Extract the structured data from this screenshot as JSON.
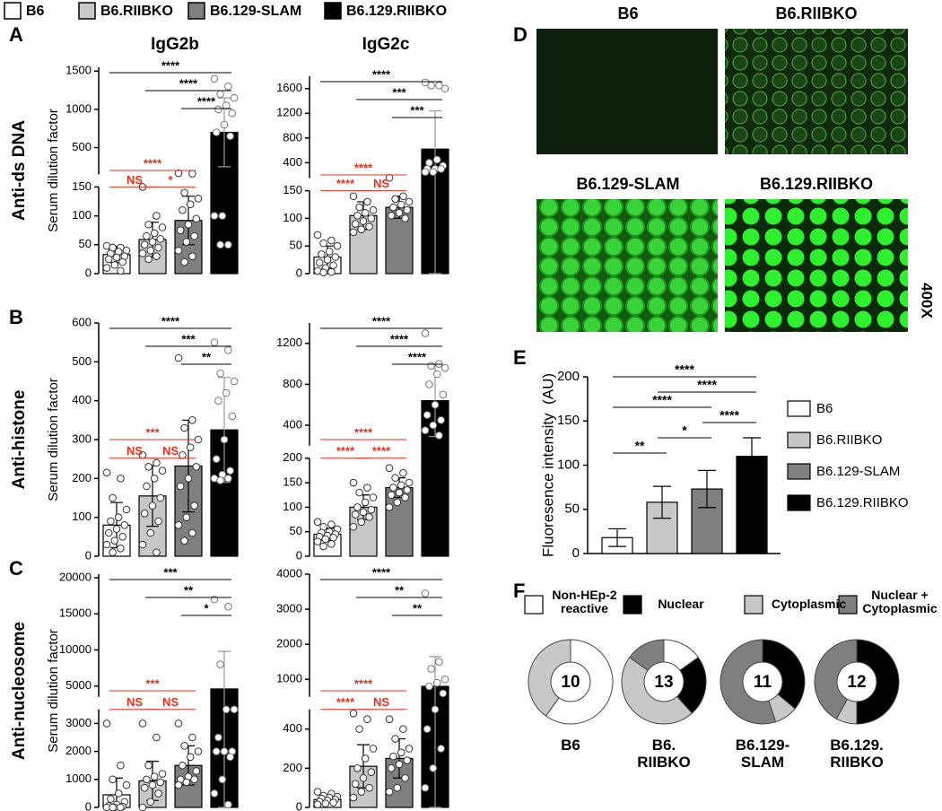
{
  "legend": {
    "groups": [
      {
        "name": "B6",
        "color": "#ffffff"
      },
      {
        "name": "B6.RIIBKO",
        "color": "#c8c8c8"
      },
      {
        "name": "B6.129-SLAM",
        "color": "#7f7f7f"
      },
      {
        "name": "B6.129.RIIBKO",
        "color": "#000000"
      }
    ]
  },
  "panel_labels": [
    "A",
    "B",
    "C",
    "D",
    "E",
    "F"
  ],
  "column_titles": [
    "IgG2b",
    "IgG2c"
  ],
  "row_labels": [
    "Anti-ds DNA",
    "Anti-histone",
    "Anti-nucleosome"
  ],
  "micrographs": {
    "labels": [
      "B6",
      "B6.RIIBKO",
      "B6.129-SLAM",
      "B6.129.RIIBKO"
    ],
    "magnification": "400X"
  },
  "chart_data": [
    {
      "type": "dotbar",
      "ylabel": "Serum dilution factor",
      "segments": [
        {
          "ylim": [
            0,
            150
          ],
          "yticks": [
            0,
            50,
            100,
            150
          ]
        },
        {
          "ylim": [
            150,
            1550
          ],
          "yticks": [
            500,
            1000,
            1500
          ]
        }
      ],
      "means": [
        33,
        59,
        92,
        700
      ],
      "sds": [
        14,
        30,
        42,
        450
      ],
      "points": [
        [
          48,
          45,
          42,
          40,
          38,
          35,
          30,
          28,
          25,
          20,
          15,
          10,
          5,
          45
        ],
        [
          150,
          100,
          85,
          80,
          70,
          65,
          60,
          55,
          50,
          45,
          40,
          35,
          30,
          25
        ],
        [
          165,
          160,
          140,
          130,
          120,
          110,
          95,
          85,
          75,
          65,
          55,
          40,
          30,
          20
        ],
        [
          1400,
          1300,
          1200,
          1150,
          1050,
          1000,
          950,
          800,
          700,
          650,
          100,
          100,
          50,
          50
        ]
      ],
      "comparisons": [
        {
          "groups": [
            0,
            3
          ],
          "label": "****",
          "color": "#000000"
        },
        {
          "groups": [
            1,
            3
          ],
          "label": "****",
          "color": "#000000"
        },
        {
          "groups": [
            2,
            3
          ],
          "label": "****",
          "color": "#000000"
        },
        {
          "groups": [
            0,
            2
          ],
          "label": "****",
          "color": "#e8301c"
        },
        {
          "groups": [
            0,
            1
          ],
          "label": "NS",
          "color": "#e8301c"
        },
        {
          "groups": [
            1,
            2
          ],
          "label": "*",
          "color": "#e8301c"
        }
      ]
    },
    {
      "type": "dotbar",
      "segments": [
        {
          "ylim": [
            0,
            150
          ],
          "yticks": [
            0,
            50,
            100,
            150
          ]
        },
        {
          "ylim": [
            150,
            1800
          ],
          "yticks": [
            400,
            800,
            1200,
            1600
          ]
        }
      ],
      "means": [
        30,
        105,
        120,
        620
      ],
      "sds": [
        20,
        25,
        20,
        620
      ],
      "points": [
        [
          70,
          60,
          55,
          50,
          40,
          35,
          30,
          25,
          20,
          15,
          10,
          5,
          3,
          2
        ],
        [
          140,
          130,
          120,
          115,
          110,
          105,
          100,
          95,
          90,
          85,
          80,
          75
        ],
        [
          155,
          140,
          135,
          130,
          125,
          120,
          115,
          110,
          105,
          100
        ],
        [
          1700,
          1650,
          1650,
          1600,
          450,
          400,
          350,
          300,
          300,
          300,
          250,
          250
        ]
      ],
      "comparisons": [
        {
          "groups": [
            0,
            3
          ],
          "label": "****",
          "color": "#000000"
        },
        {
          "groups": [
            1,
            3
          ],
          "label": "***",
          "color": "#000000"
        },
        {
          "groups": [
            2,
            3
          ],
          "label": "***",
          "color": "#000000"
        },
        {
          "groups": [
            0,
            2
          ],
          "label": "****",
          "color": "#e8301c"
        },
        {
          "groups": [
            0,
            1
          ],
          "label": "****",
          "color": "#e8301c"
        },
        {
          "groups": [
            1,
            2
          ],
          "label": "NS",
          "color": "#e8301c"
        }
      ]
    },
    {
      "type": "dotbar",
      "ylabel": "Serum dilution factor",
      "segments": [
        {
          "ylim": [
            0,
            600
          ],
          "yticks": [
            0,
            100,
            200,
            300,
            400,
            500,
            600
          ]
        }
      ],
      "means": [
        80,
        155,
        232,
        325
      ],
      "sds": [
        58,
        78,
        118,
        135
      ],
      "points": [
        [
          215,
          200,
          150,
          120,
          100,
          90,
          80,
          70,
          60,
          50,
          40,
          30,
          20,
          10
        ],
        [
          260,
          240,
          230,
          220,
          200,
          180,
          150,
          130,
          110,
          90,
          60,
          30,
          10
        ],
        [
          510,
          350,
          330,
          300,
          280,
          260,
          230,
          200,
          180,
          130,
          100,
          80,
          60,
          40
        ],
        [
          550,
          530,
          470,
          450,
          420,
          400,
          360,
          300,
          250,
          220,
          210,
          200,
          200,
          195
        ]
      ],
      "comparisons": [
        {
          "groups": [
            0,
            3
          ],
          "label": "****",
          "color": "#000000"
        },
        {
          "groups": [
            1,
            3
          ],
          "label": "***",
          "color": "#000000"
        },
        {
          "groups": [
            2,
            3
          ],
          "label": "**",
          "color": "#000000"
        },
        {
          "groups": [
            0,
            2
          ],
          "label": "***",
          "color": "#e8301c"
        },
        {
          "groups": [
            0,
            1
          ],
          "label": "NS",
          "color": "#e8301c"
        },
        {
          "groups": [
            1,
            2
          ],
          "label": "NS",
          "color": "#e8301c"
        }
      ]
    },
    {
      "type": "dotbar",
      "segments": [
        {
          "ylim": [
            0,
            200
          ],
          "yticks": [
            0,
            50,
            100,
            150,
            200
          ]
        },
        {
          "ylim": [
            200,
            1400
          ],
          "yticks": [
            400,
            800,
            1200
          ]
        }
      ],
      "means": [
        45,
        100,
        140,
        640
      ],
      "sds": [
        12,
        25,
        20,
        350
      ],
      "points": [
        [
          70,
          65,
          60,
          55,
          50,
          48,
          45,
          42,
          40,
          38,
          35,
          30,
          25,
          20
        ],
        [
          150,
          140,
          130,
          120,
          110,
          100,
          95,
          90,
          85,
          80,
          70,
          60
        ],
        [
          180,
          170,
          160,
          150,
          145,
          140,
          135,
          130,
          125,
          120,
          110,
          100
        ],
        [
          1300,
          1000,
          980,
          960,
          900,
          800,
          700,
          600,
          500,
          450,
          400,
          350,
          300
        ]
      ],
      "comparisons": [
        {
          "groups": [
            0,
            3
          ],
          "label": "****",
          "color": "#000000"
        },
        {
          "groups": [
            1,
            3
          ],
          "label": "****",
          "color": "#000000"
        },
        {
          "groups": [
            2,
            3
          ],
          "label": "****",
          "color": "#000000"
        },
        {
          "groups": [
            0,
            2
          ],
          "label": "****",
          "color": "#e8301c"
        },
        {
          "groups": [
            0,
            1
          ],
          "label": "****",
          "color": "#e8301c"
        },
        {
          "groups": [
            1,
            2
          ],
          "label": "****",
          "color": "#e8301c"
        }
      ]
    },
    {
      "type": "dotbar",
      "ylabel": "Serum dilution factor",
      "segments": [
        {
          "ylim": [
            0,
            3500
          ],
          "yticks": [
            0,
            1000,
            2000,
            3000
          ]
        },
        {
          "ylim": [
            3500,
            20500
          ],
          "yticks": [
            5000,
            10000,
            15000,
            20000
          ]
        }
      ],
      "means": [
        450,
        950,
        1500,
        4600
      ],
      "sds": [
        600,
        700,
        700,
        5200
      ],
      "points": [
        [
          3000,
          1500,
          1000,
          800,
          500,
          300,
          200,
          100,
          50,
          30,
          0,
          0,
          0,
          0
        ],
        [
          3000,
          2500,
          1500,
          1200,
          1100,
          1000,
          900,
          800,
          700,
          500,
          200,
          0
        ],
        [
          3000,
          2500,
          2200,
          2000,
          1800,
          1500,
          1300,
          1100,
          1000,
          1000,
          900,
          800
        ],
        [
          17000,
          16000,
          8000,
          3500,
          3500,
          2500,
          2000,
          2000,
          2000,
          1800,
          1000,
          500,
          100
        ]
      ],
      "comparisons": [
        {
          "groups": [
            0,
            3
          ],
          "label": "***",
          "color": "#000000"
        },
        {
          "groups": [
            1,
            3
          ],
          "label": "**",
          "color": "#000000"
        },
        {
          "groups": [
            2,
            3
          ],
          "label": "*",
          "color": "#000000"
        },
        {
          "groups": [
            0,
            2
          ],
          "label": "***",
          "color": "#e8301c"
        },
        {
          "groups": [
            0,
            1
          ],
          "label": "NS",
          "color": "#e8301c"
        },
        {
          "groups": [
            1,
            2
          ],
          "label": "NS",
          "color": "#e8301c"
        }
      ]
    },
    {
      "type": "dotbar",
      "segments": [
        {
          "ylim": [
            0,
            500
          ],
          "yticks": [
            0,
            200,
            400
          ]
        },
        {
          "ylim": [
            500,
            4000
          ],
          "yticks": [
            1000,
            2000,
            3000,
            4000
          ]
        }
      ],
      "means": [
        40,
        210,
        250,
        800
      ],
      "sds": [
        15,
        110,
        100,
        850
      ],
      "points": [
        [
          80,
          70,
          60,
          55,
          50,
          45,
          40,
          35,
          30,
          25,
          20,
          15
        ],
        [
          480,
          450,
          400,
          300,
          250,
          200,
          180,
          150,
          120,
          100,
          80,
          50
        ],
        [
          450,
          400,
          350,
          300,
          280,
          260,
          240,
          220,
          200,
          150,
          100,
          80
        ],
        [
          3450,
          1500,
          1300,
          1000,
          900,
          800,
          600,
          500,
          400,
          300,
          200,
          100
        ]
      ],
      "comparisons": [
        {
          "groups": [
            0,
            3
          ],
          "label": "****",
          "color": "#000000"
        },
        {
          "groups": [
            1,
            3
          ],
          "label": "**",
          "color": "#000000"
        },
        {
          "groups": [
            2,
            3
          ],
          "label": "**",
          "color": "#000000"
        },
        {
          "groups": [
            0,
            2
          ],
          "label": "****",
          "color": "#e8301c"
        },
        {
          "groups": [
            0,
            1
          ],
          "label": "****",
          "color": "#e8301c"
        },
        {
          "groups": [
            1,
            2
          ],
          "label": "NS",
          "color": "#e8301c"
        }
      ]
    },
    {
      "type": "bar",
      "ylabel": "Fluoresence intensity  (AU)",
      "ylim": [
        0,
        200
      ],
      "yticks": [
        0,
        50,
        100,
        150,
        200
      ],
      "categories": [
        "B6",
        "B6.RIIBKO",
        "B6.129-SLAM",
        "B6.129.RIIBKO"
      ],
      "colors": [
        "#ffffff",
        "#c8c8c8",
        "#7f7f7f",
        "#000000"
      ],
      "values": [
        18,
        58,
        73,
        110
      ],
      "errors": [
        10,
        18,
        21,
        21
      ],
      "legend": "right",
      "comparisons": [
        {
          "groups": [
            0,
            3
          ],
          "label": "****"
        },
        {
          "groups": [
            1,
            3
          ],
          "label": "****"
        },
        {
          "groups": [
            0,
            2
          ],
          "label": "****"
        },
        {
          "groups": [
            2,
            3
          ],
          "label": "****"
        },
        {
          "groups": [
            1,
            2
          ],
          "label": "*"
        },
        {
          "groups": [
            0,
            1
          ],
          "label": "**"
        }
      ]
    },
    {
      "type": "donut",
      "categories": [
        "Non-HEp-2 reactive",
        "Nuclear",
        "Cytoplasmic",
        "Nuclear + Cytoplasmic"
      ],
      "colors": [
        "#ffffff",
        "#000000",
        "#c8c8c8",
        "#7f7f7f"
      ],
      "groups": [
        {
          "label": "B6",
          "n": 10,
          "values": [
            60,
            0,
            40,
            0
          ]
        },
        {
          "label": "B6. RIIBKO",
          "n": 13,
          "values": [
            15,
            23,
            46,
            15
          ]
        },
        {
          "label": "B6.129-SLAM",
          "n": 11,
          "values": [
            0,
            36,
            9,
            55
          ]
        },
        {
          "label": "B6.129. RIIBKO",
          "n": 12,
          "values": [
            0,
            50,
            8,
            42
          ]
        }
      ]
    }
  ]
}
